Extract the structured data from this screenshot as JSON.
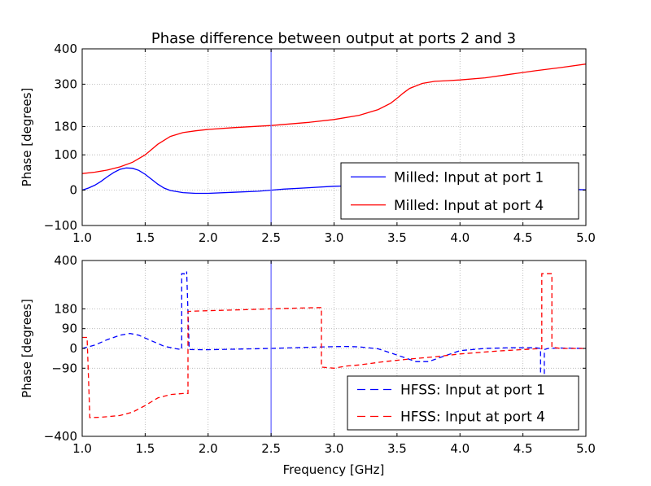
{
  "figure": {
    "title": "Phase difference between output at ports 2 and 3",
    "xlabel": "Frequency [GHz]"
  },
  "chart_data": [
    {
      "type": "line",
      "title": "Phase difference between output at ports 2 and 3",
      "xlabel": "",
      "ylabel": "Phase [degrees]",
      "xlim": [
        1.0,
        5.0
      ],
      "ylim": [
        -100,
        400
      ],
      "xticks": [
        "1.0",
        "1.5",
        "2.0",
        "2.5",
        "3.0",
        "3.5",
        "4.0",
        "4.5",
        "5.0"
      ],
      "xtick_values": [
        1.0,
        1.5,
        2.0,
        2.5,
        3.0,
        3.5,
        4.0,
        4.5,
        5.0
      ],
      "yticks": [
        "−100",
        "0",
        "100",
        "180",
        "300",
        "400"
      ],
      "ytick_values": [
        -100,
        0,
        100,
        180,
        300,
        400
      ],
      "grid": true,
      "legend_position": "lower-right",
      "vline": {
        "x": 2.5,
        "color": "#6b6bff"
      },
      "series": [
        {
          "name": "Milled: Input at port 1",
          "color": "#0000ff",
          "dashed": false,
          "x": [
            1.0,
            1.05,
            1.1,
            1.15,
            1.2,
            1.25,
            1.3,
            1.35,
            1.4,
            1.45,
            1.5,
            1.55,
            1.6,
            1.65,
            1.7,
            1.8,
            1.9,
            2.0,
            2.2,
            2.4,
            2.5,
            2.6,
            2.8,
            3.0,
            3.1,
            3.3,
            3.5,
            3.7,
            3.9,
            4.1,
            4.3,
            4.5,
            4.7,
            4.9,
            5.0
          ],
          "y": [
            0,
            6,
            14,
            25,
            38,
            50,
            59,
            63,
            62,
            56,
            45,
            31,
            17,
            6,
            -1,
            -7,
            -9,
            -9,
            -6,
            -3,
            0,
            3,
            7,
            11,
            12,
            12,
            10,
            8,
            7,
            6,
            5,
            4,
            3,
            2,
            1
          ]
        },
        {
          "name": "Milled: Input at port 4",
          "color": "#ff0000",
          "dashed": false,
          "x": [
            1.0,
            1.1,
            1.2,
            1.3,
            1.4,
            1.5,
            1.6,
            1.7,
            1.8,
            1.9,
            2.0,
            2.2,
            2.5,
            2.8,
            3.0,
            3.2,
            3.35,
            3.45,
            3.5,
            3.55,
            3.6,
            3.7,
            3.8,
            3.9,
            4.0,
            4.2,
            4.4,
            4.6,
            4.8,
            5.0
          ],
          "y": [
            47,
            51,
            57,
            66,
            79,
            100,
            130,
            152,
            163,
            168,
            172,
            177,
            183,
            192,
            200,
            212,
            228,
            246,
            260,
            275,
            288,
            302,
            308,
            310,
            312,
            318,
            328,
            338,
            347,
            357
          ]
        }
      ]
    },
    {
      "type": "line",
      "title": "",
      "xlabel": "Frequency [GHz]",
      "ylabel": "Phase [degrees]",
      "xlim": [
        1.0,
        5.0
      ],
      "ylim": [
        -400,
        400
      ],
      "xticks": [
        "1.0",
        "1.5",
        "2.0",
        "2.5",
        "3.0",
        "3.5",
        "4.0",
        "4.5",
        "5.0"
      ],
      "xtick_values": [
        1.0,
        1.5,
        2.0,
        2.5,
        3.0,
        3.5,
        4.0,
        4.5,
        5.0
      ],
      "yticks": [
        "−400",
        "−90",
        "0",
        "90",
        "180",
        "400"
      ],
      "ytick_values": [
        -400,
        -90,
        0,
        90,
        180,
        400
      ],
      "grid": true,
      "legend_position": "lower-right",
      "vline": {
        "x": 2.5,
        "color": "#6b6bff"
      },
      "series": [
        {
          "name": "HFSS: Input at port 1",
          "color": "#0000ff",
          "dashed": true,
          "x": [
            1.0,
            1.1,
            1.2,
            1.3,
            1.38,
            1.45,
            1.55,
            1.65,
            1.75,
            1.79,
            1.79,
            1.81,
            1.81,
            1.83,
            1.83,
            1.85,
            2.0,
            2.5,
            2.8,
            3.0,
            3.1,
            3.2,
            3.35,
            3.5,
            3.65,
            3.75,
            3.85,
            4.0,
            4.2,
            4.4,
            4.6,
            4.64,
            4.64,
            4.67,
            4.67,
            4.7,
            4.8,
            5.0
          ],
          "y": [
            0,
            15,
            40,
            60,
            68,
            60,
            35,
            10,
            -2,
            -5,
            340,
            340,
            335,
            335,
            350,
            -5,
            -6,
            0,
            5,
            8,
            9,
            7,
            -2,
            -30,
            -60,
            -60,
            -40,
            -10,
            0,
            3,
            3,
            0,
            -130,
            -130,
            -5,
            0,
            2,
            0
          ]
        },
        {
          "name": "HFSS: Input at port 4",
          "color": "#ff0000",
          "dashed": true,
          "x": [
            1.0,
            1.04,
            1.04,
            1.06,
            1.06,
            1.15,
            1.3,
            1.4,
            1.5,
            1.6,
            1.7,
            1.8,
            1.84,
            1.84,
            1.9,
            2.2,
            2.5,
            2.8,
            2.9,
            2.9,
            3.0,
            3.1,
            3.2,
            3.4,
            3.6,
            3.8,
            4.0,
            4.3,
            4.6,
            4.65,
            4.65,
            4.73,
            4.73,
            4.8,
            5.0
          ],
          "y": [
            50,
            50,
            30,
            -300,
            -315,
            -313,
            -305,
            -290,
            -260,
            -225,
            -210,
            -205,
            -205,
            168,
            170,
            175,
            180,
            185,
            186,
            -85,
            -90,
            -80,
            -75,
            -60,
            -48,
            -38,
            -25,
            -12,
            -2,
            -2,
            340,
            340,
            5,
            0,
            0
          ]
        }
      ]
    }
  ]
}
